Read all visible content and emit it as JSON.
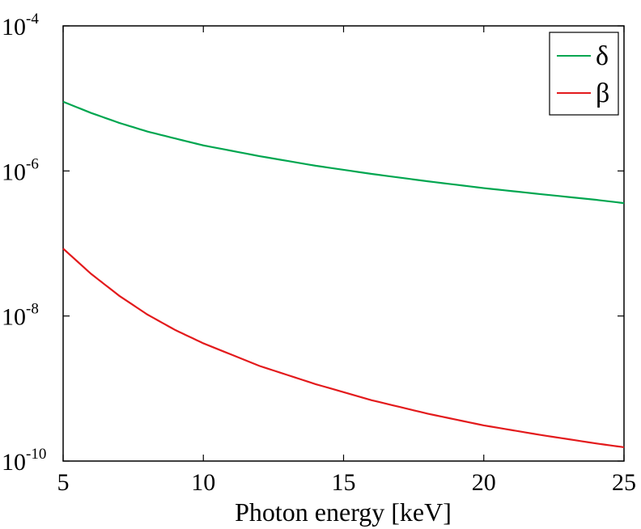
{
  "chart_data": {
    "type": "line",
    "title": "",
    "xlabel": "Photon energy [keV]",
    "ylabel": "",
    "xscale": "linear",
    "yscale": "log",
    "xlim": [
      5,
      25
    ],
    "ylim": [
      1e-10,
      0.0001
    ],
    "grid": false,
    "legend_position": "top-right",
    "x_ticks": [
      5,
      10,
      15,
      20,
      25
    ],
    "y_ticks": [
      {
        "base": "10",
        "exp": "-10",
        "value": 1e-10
      },
      {
        "base": "10",
        "exp": "-8",
        "value": 1e-08
      },
      {
        "base": "10",
        "exp": "-6",
        "value": 1e-06
      },
      {
        "base": "10",
        "exp": "-4",
        "value": 0.0001
      }
    ],
    "series": [
      {
        "name": "δ",
        "color": "#00a650",
        "x": [
          5,
          6,
          7,
          8,
          9,
          10,
          12,
          14,
          16,
          18,
          20,
          22,
          24,
          25
        ],
        "y": [
          9e-06,
          6.3e-06,
          4.6e-06,
          3.5e-06,
          2.8e-06,
          2.25e-06,
          1.6e-06,
          1.18e-06,
          9.1e-07,
          7.2e-07,
          5.8e-07,
          4.8e-07,
          4e-07,
          3.6e-07
        ]
      },
      {
        "name": "β",
        "color": "#e31a1c",
        "x": [
          5,
          6,
          7,
          8,
          9,
          10,
          12,
          14,
          16,
          18,
          20,
          22,
          24,
          25
        ],
        "y": [
          8.5e-08,
          3.8e-08,
          1.9e-08,
          1.05e-08,
          6.4e-09,
          4.2e-09,
          2.05e-09,
          1.15e-09,
          6.9e-10,
          4.5e-10,
          3.1e-10,
          2.3e-10,
          1.75e-10,
          1.55e-10
        ]
      }
    ]
  }
}
